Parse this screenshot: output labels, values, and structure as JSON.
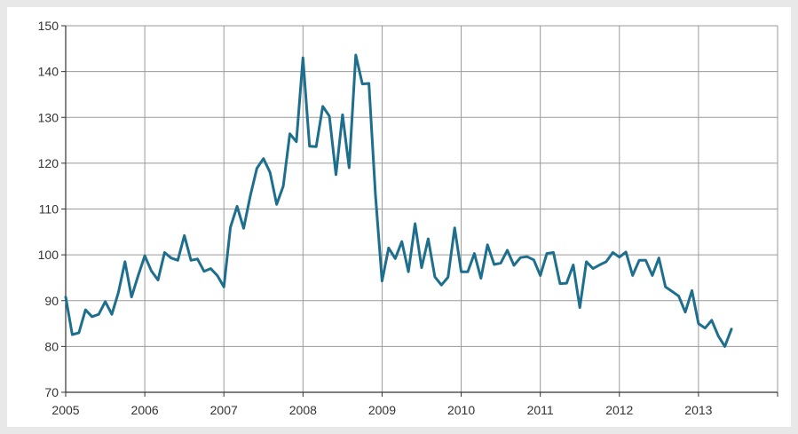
{
  "chart_data": {
    "type": "line",
    "title": "",
    "xlabel": "",
    "ylabel": "",
    "xlim": [
      2005,
      2014
    ],
    "ylim": [
      70,
      150
    ],
    "y_ticks": [
      70,
      80,
      90,
      100,
      110,
      120,
      130,
      140,
      150
    ],
    "x_ticks": [
      2005,
      2006,
      2007,
      2008,
      2009,
      2010,
      2011,
      2012,
      2013
    ],
    "y_tick_labels": [
      "70",
      "80",
      "90",
      "100",
      "110",
      "120",
      "130",
      "140",
      "150"
    ],
    "x_tick_labels": [
      "2005",
      "2006",
      "2007",
      "2008",
      "2009",
      "2010",
      "2011",
      "2012",
      "2013"
    ],
    "grid": true,
    "legend": "none",
    "series": [
      {
        "color": "#1e6e8e",
        "x": [
          2005.0,
          2005.083,
          2005.167,
          2005.25,
          2005.333,
          2005.417,
          2005.5,
          2005.583,
          2005.667,
          2005.75,
          2005.833,
          2005.917,
          2006.0,
          2006.083,
          2006.167,
          2006.25,
          2006.333,
          2006.417,
          2006.5,
          2006.583,
          2006.667,
          2006.75,
          2006.833,
          2006.917,
          2007.0,
          2007.083,
          2007.167,
          2007.25,
          2007.333,
          2007.417,
          2007.5,
          2007.583,
          2007.667,
          2007.75,
          2007.833,
          2007.917,
          2008.0,
          2008.083,
          2008.167,
          2008.25,
          2008.333,
          2008.417,
          2008.5,
          2008.583,
          2008.667,
          2008.75,
          2008.833,
          2008.917,
          2009.0,
          2009.083,
          2009.167,
          2009.25,
          2009.333,
          2009.417,
          2009.5,
          2009.583,
          2009.667,
          2009.75,
          2009.833,
          2009.917,
          2010.0,
          2010.083,
          2010.167,
          2010.25,
          2010.333,
          2010.417,
          2010.5,
          2010.583,
          2010.667,
          2010.75,
          2010.833,
          2010.917,
          2011.0,
          2011.083,
          2011.167,
          2011.25,
          2011.333,
          2011.417,
          2011.5,
          2011.583,
          2011.667,
          2011.75,
          2011.833,
          2011.917,
          2012.0,
          2012.083,
          2012.167,
          2012.25,
          2012.333,
          2012.417,
          2012.5,
          2012.583,
          2012.667,
          2012.75,
          2012.833,
          2012.917,
          2013.0,
          2013.083,
          2013.167,
          2013.25,
          2013.333,
          2013.417
        ],
        "values": [
          90.8,
          82.6,
          83.0,
          88.0,
          86.5,
          87.0,
          89.8,
          87.0,
          91.8,
          98.5,
          90.8,
          95.5,
          99.8,
          96.5,
          94.5,
          100.5,
          99.3,
          98.8,
          104.2,
          98.8,
          99.1,
          96.4,
          97.0,
          95.5,
          93.0,
          106.0,
          110.6,
          105.8,
          112.8,
          118.9,
          121.0,
          118.0,
          111.0,
          115.0,
          126.4,
          124.7,
          143.0,
          123.7,
          123.6,
          132.4,
          130.3,
          117.5,
          130.6,
          119.0,
          143.6,
          137.3,
          137.4,
          113.0,
          94.3,
          101.5,
          99.2,
          102.9,
          96.3,
          106.8,
          97.2,
          103.5,
          95.2,
          93.4,
          95.1,
          105.9,
          96.3,
          96.3,
          100.3,
          94.9,
          102.2,
          97.9,
          98.2,
          101.0,
          97.7,
          99.4,
          99.6,
          98.9,
          95.5,
          100.3,
          100.5,
          93.7,
          93.8,
          97.8,
          88.5,
          98.5,
          97.0,
          97.8,
          98.5,
          100.5,
          99.5,
          100.6,
          95.5,
          98.8,
          98.8,
          95.5,
          99.3,
          93.0,
          92.0,
          91.0,
          87.5,
          92.2,
          85.0,
          84.0,
          85.7,
          82.3,
          80.0,
          83.8
        ]
      }
    ]
  }
}
